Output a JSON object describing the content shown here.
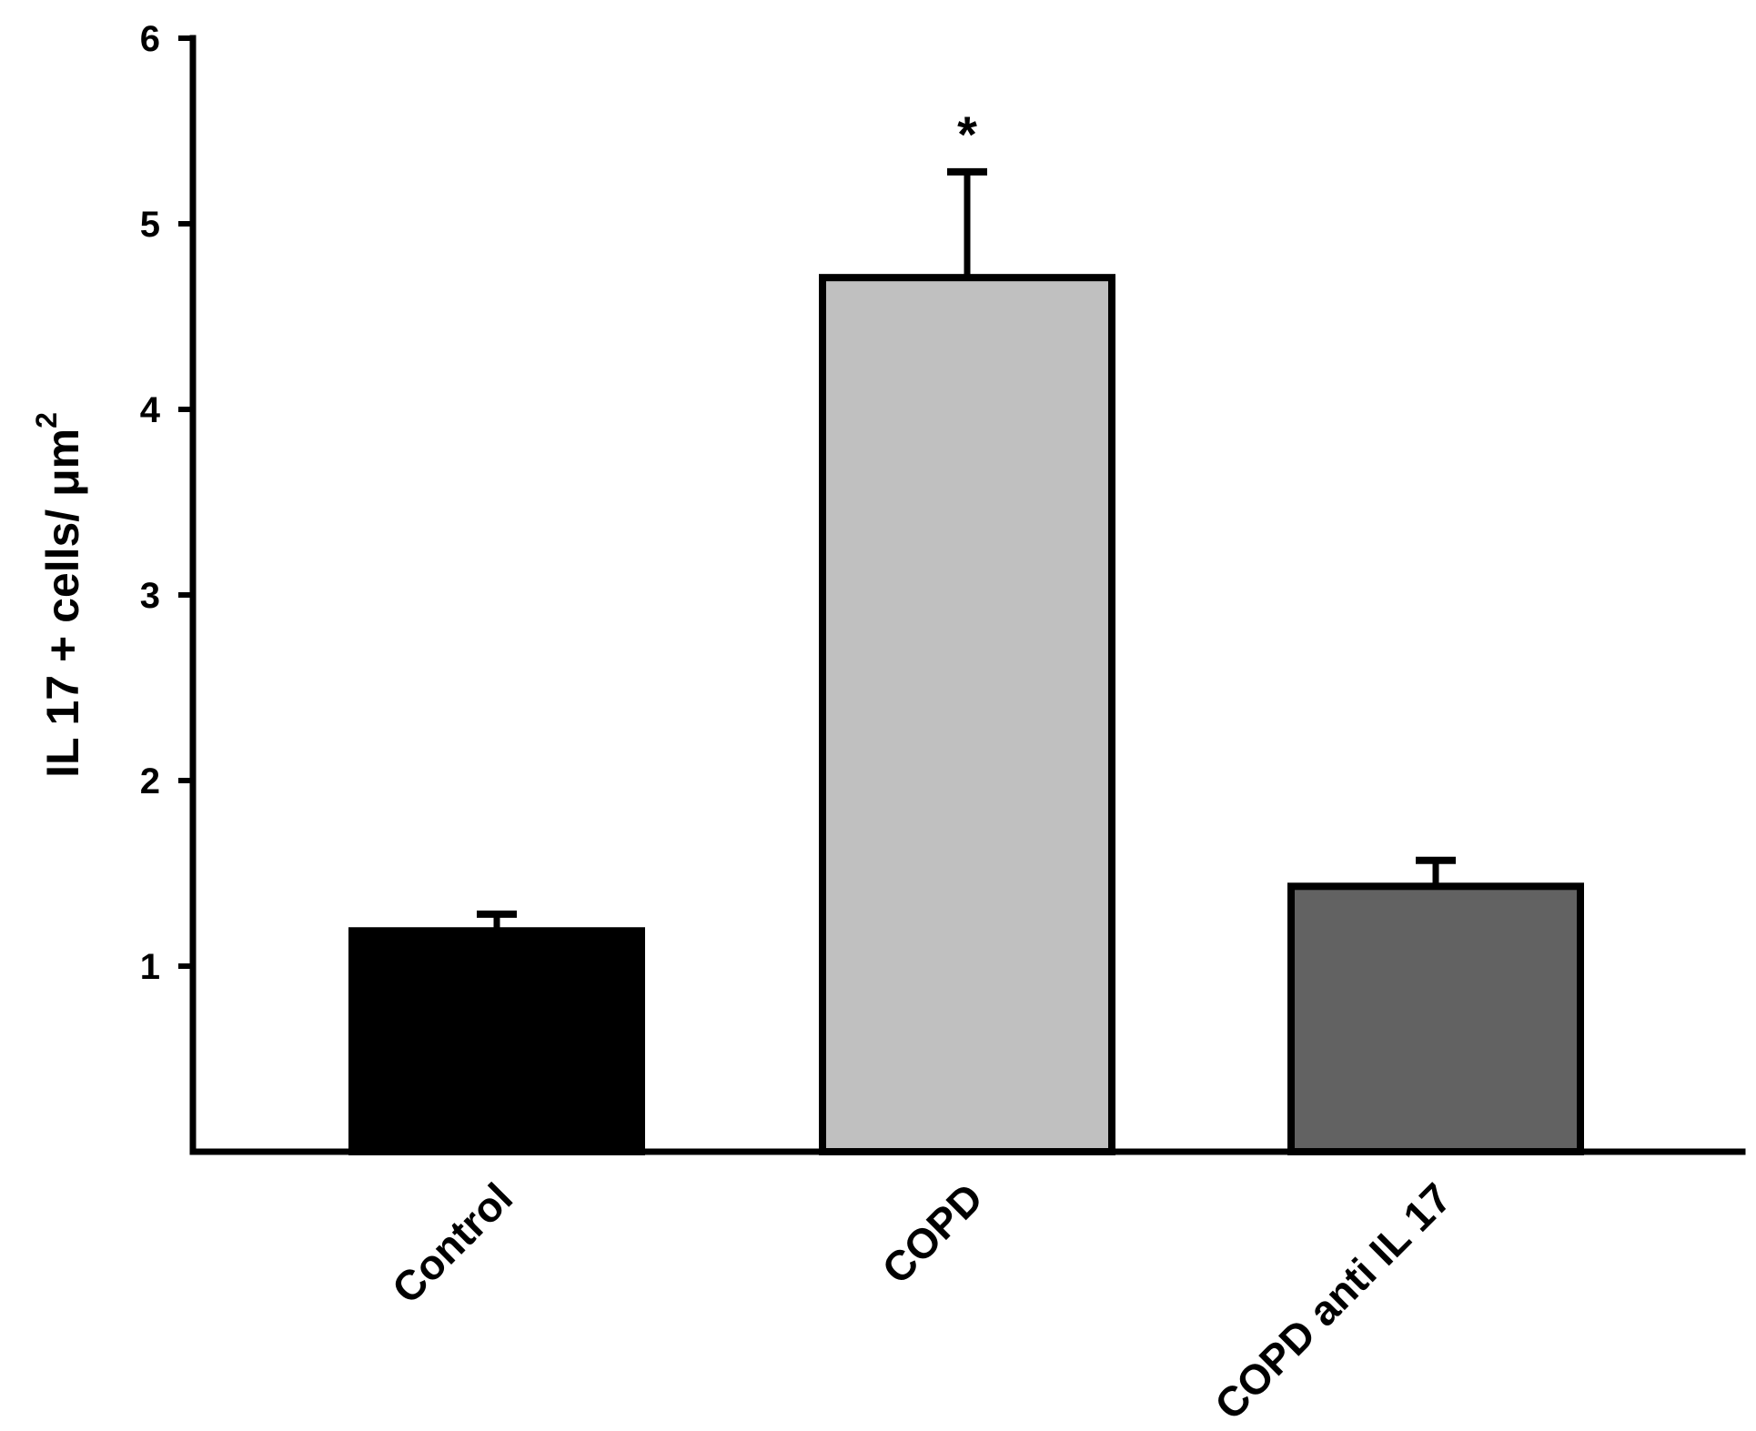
{
  "chart_data": {
    "type": "bar",
    "title": "",
    "xlabel": "",
    "ylabel": "IL 17 + cells/ μm",
    "ylabel_superscript": "2",
    "categories": [
      "Control",
      "COPD",
      "COPD anti IL 17"
    ],
    "values": [
      1.19,
      4.71,
      1.43
    ],
    "error_upper": [
      0.09,
      0.57,
      0.14
    ],
    "bar_colors": [
      "#000000",
      "#c0c0c0",
      "#626262"
    ],
    "significance": [
      "",
      "*",
      ""
    ],
    "ylim": [
      0,
      6
    ],
    "yticks": [
      1,
      2,
      3,
      4,
      5,
      6
    ],
    "grid": false,
    "legend": "none"
  }
}
